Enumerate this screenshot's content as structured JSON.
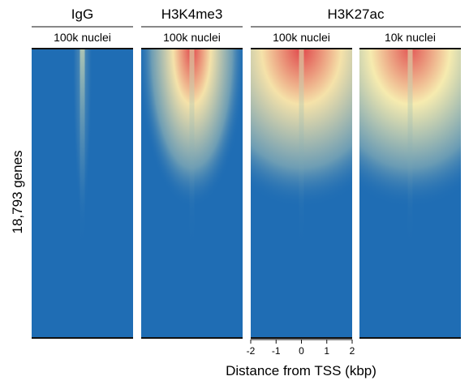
{
  "chart_data": {
    "type": "heatmap",
    "ylabel": "18,793 genes",
    "xlabel": "Distance from TSS (kbp)",
    "x_ticks": [
      "-2",
      "-1",
      "0",
      "1",
      "2"
    ],
    "xlim": [
      -2,
      2
    ],
    "n_genes": 18793,
    "colors": {
      "low": "#1f6db4",
      "mid": "#f7f3b4",
      "high": "#e0464a"
    },
    "groups": [
      {
        "label": "IgG",
        "panels": [
          0
        ]
      },
      {
        "label": "H3K4me3",
        "panels": [
          1
        ]
      },
      {
        "label": "H3K27ac",
        "panels": [
          2,
          3
        ]
      }
    ],
    "panels": [
      {
        "label": "100k nuclei",
        "mark": "IgG",
        "peak": 0.15,
        "base_width_kb": 0.15,
        "depth": 0.6
      },
      {
        "label": "100k nuclei",
        "mark": "H3K4me3",
        "peak": 1.0,
        "base_width_kb": 0.9,
        "depth": 0.55
      },
      {
        "label": "100k nuclei",
        "mark": "H3K27ac",
        "peak": 1.0,
        "base_width_kb": 1.9,
        "depth": 0.55
      },
      {
        "label": "10k nuclei",
        "mark": "H3K27ac",
        "peak": 0.95,
        "base_width_kb": 1.9,
        "depth": 0.55
      }
    ]
  }
}
